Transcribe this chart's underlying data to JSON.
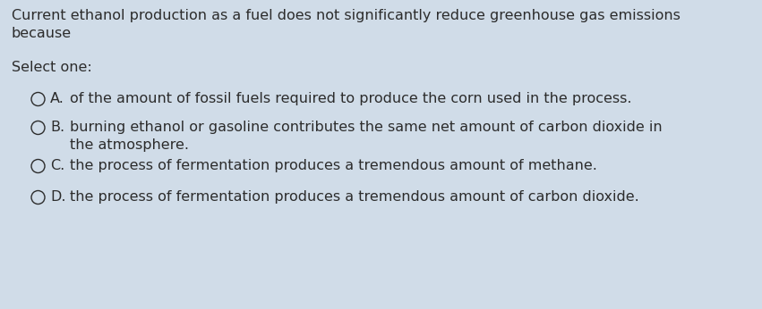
{
  "background_color": "#d0dce8",
  "question_text_line1": "Current ethanol production as a fuel does not significantly reduce greenhouse gas emissions",
  "question_text_line2": "because",
  "select_one_text": "Select one:",
  "options": [
    {
      "label": "A.",
      "text": "of the amount of fossil fuels required to produce the corn used in the process."
    },
    {
      "label": "B.",
      "text": "burning ethanol or gasoline contributes the same net amount of carbon dioxide in\nthe atmosphere."
    },
    {
      "label": "C.",
      "text": "the process of fermentation produces a tremendous amount of methane."
    },
    {
      "label": "D.",
      "text": "the process of fermentation produces a tremendous amount of carbon dioxide."
    }
  ],
  "font_size": 11.5,
  "text_color": "#2c2c2c",
  "circle_color": "#2c2c2c",
  "circle_linewidth": 1.0
}
